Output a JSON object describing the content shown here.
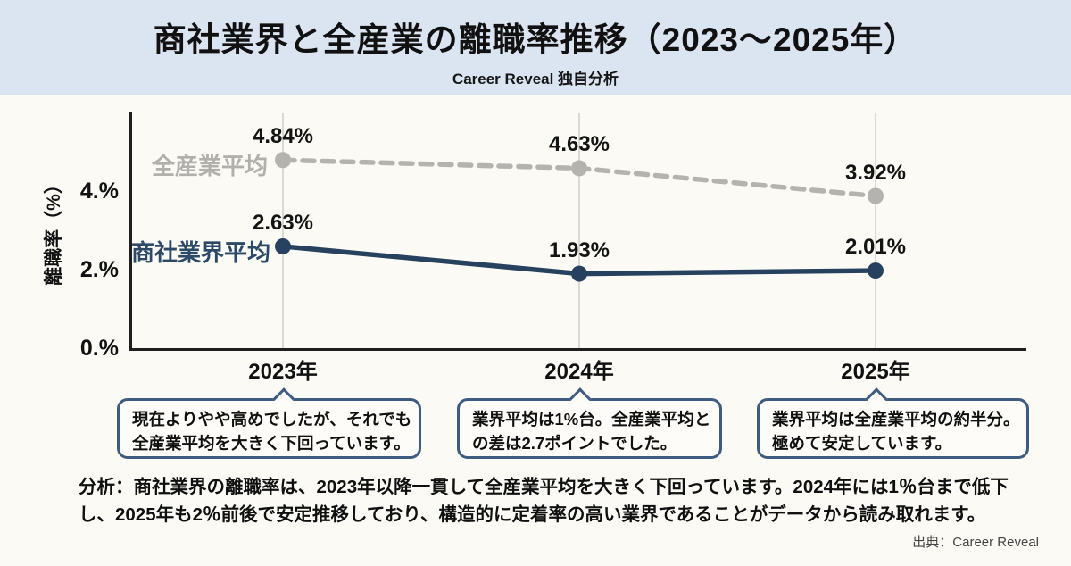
{
  "header": {
    "title": "商社業界と全産業の離職率推移（2023〜2025年）",
    "subtitle": "Career Reveal 独自分析"
  },
  "chart_data": {
    "type": "line",
    "categories": [
      "2023年",
      "2024年",
      "2025年"
    ],
    "ylabel": "離職率（%）",
    "xlabel": "",
    "ylim": [
      0,
      5.6
    ],
    "y_ticks": [
      {
        "value": 4,
        "label": "4.%"
      },
      {
        "value": 2,
        "label": "2.%"
      },
      {
        "value": 0,
        "label": "0.%"
      }
    ],
    "grid": "vertical-only",
    "legend_position": "inline-left-of-first-point",
    "series": [
      {
        "name": "全産業平均",
        "values": [
          4.84,
          4.63,
          3.92
        ],
        "point_labels": [
          "4.84%",
          "4.63%",
          "3.92%"
        ],
        "color": "#b5b3b0",
        "line_style": "dashed"
      },
      {
        "name": "商社業界平均",
        "values": [
          2.63,
          1.93,
          2.01
        ],
        "point_labels": [
          "2.63%",
          "1.93%",
          "2.01%"
        ],
        "color": "#27425f",
        "line_style": "solid"
      }
    ]
  },
  "callouts": [
    {
      "lines": [
        "現在よりやや高めでしたが、それでも",
        "全産業平均を大きく下回っています。"
      ]
    },
    {
      "lines": [
        "業界平均は1%台。全産業平均と",
        "の差は2.7ポイントでした。"
      ]
    },
    {
      "lines": [
        "業界平均は全産業平均の約半分。",
        "極めて安定しています。"
      ]
    }
  ],
  "analysis": {
    "lines": [
      "分析：商社業界の離職率は、2023年以降一貫して全産業平均を大きく下回っています。2024年には1％台まで低下",
      "し、2025年も2％前後で安定推移しており、構造的に定着率の高い業界であることがデータから読み取れます。"
    ]
  },
  "source": "出典：Career Reveal",
  "colors": {
    "header_bg": "#dbe5f1",
    "page_bg": "#fbfaf5",
    "industry_series": "#27425f",
    "all_industry_series": "#b5b3b0",
    "callout_border": "#3e5c80",
    "axis": "#1e1e1e",
    "gridline": "#dbd9d3"
  }
}
